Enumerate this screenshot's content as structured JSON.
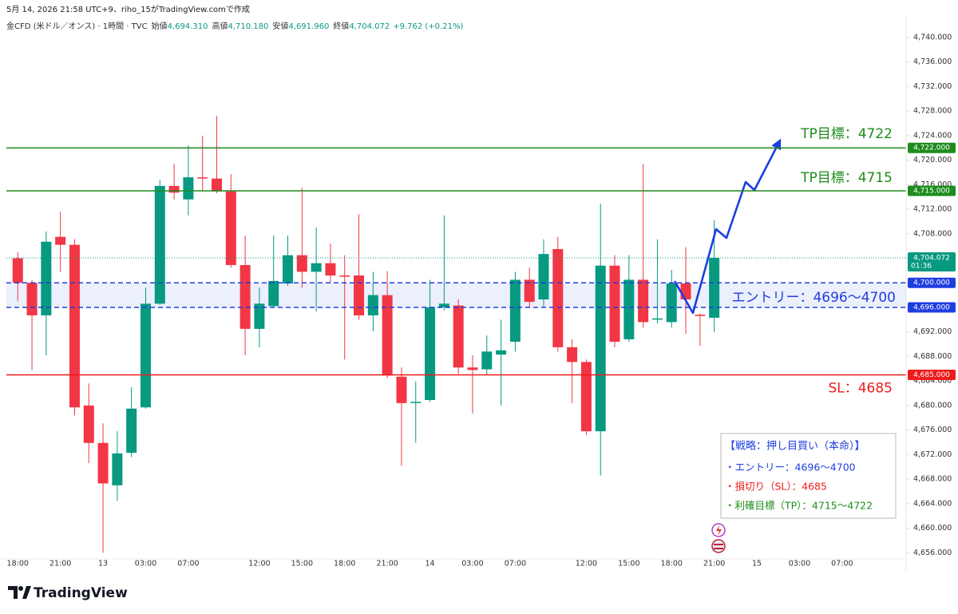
{
  "chart_data": {
    "type": "candlestick",
    "header": {
      "created": "5月 14, 2026 21:58 UTC+9、riho_15がTradingView.comで作成",
      "symbol": "金CFD (米ドル／オンス) · 1時間 · TVC",
      "ohlc": [
        {
          "label": "始値",
          "value": "4,694.310"
        },
        {
          "label": "高値",
          "value": "4,710.180"
        },
        {
          "label": "安値",
          "value": "4,691.960"
        },
        {
          "label": "終値",
          "value": "4,704.072"
        }
      ],
      "change": "+9.762 (+0.21%)"
    },
    "up_color": "#089981",
    "down_color": "#f23645",
    "open": [
      4704,
      4700,
      4694.7,
      4707.5,
      4706.2,
      4680,
      4673.9,
      4667,
      4672.3,
      4679.7,
      4696.6,
      4715.8,
      4713.6,
      4717.2,
      4717,
      4714.9,
      4702.9,
      4692.5,
      4696.2,
      4699.9,
      4704.5,
      4701.8,
      4703.2,
      4701.2,
      4701.2,
      4694.7,
      4698,
      4684.7,
      4680.4,
      4680.9,
      4696,
      4696.3,
      4686.2,
      4685.9,
      4688.3,
      4690.4,
      4700.5,
      4697.3,
      4705.5,
      4689.5,
      4687.1,
      4675.8,
      4702.8,
      4690.8,
      4700.5,
      4694,
      4693.6,
      4699.9,
      4694.8,
      4694.31
    ],
    "high": [
      4705,
      4700.5,
      4708.4,
      4711.6,
      4707.1,
      4683.6,
      4677.1,
      4675.8,
      4683,
      4699.2,
      4716.8,
      4719.4,
      4722.4,
      4724,
      4727.2,
      4717.7,
      4707.7,
      4699.2,
      4707.7,
      4707.7,
      4715.5,
      4709,
      4706.4,
      4704.5,
      4711.2,
      4701.8,
      4701.9,
      4686.2,
      4683.9,
      4700.5,
      4711,
      4697.3,
      4688.2,
      4691.4,
      4694,
      4701.8,
      4702.5,
      4707.1,
      4707.5,
      4690.8,
      4687.5,
      4712.9,
      4704.5,
      4704.5,
      4719.4,
      4707.1,
      4702.1,
      4705.8,
      4695,
      4710.18
    ],
    "low": [
      4697,
      4685.8,
      4688.2,
      4701.8,
      4678.4,
      4670.6,
      4656,
      4664.5,
      4671.6,
      4679.5,
      4696.4,
      4713.6,
      4711,
      4714.9,
      4714.6,
      4702.5,
      4688.2,
      4689.5,
      4696,
      4699.5,
      4699.2,
      4695.3,
      4700,
      4687.5,
      4694,
      4692.1,
      4684.5,
      4670.2,
      4673.9,
      4680.6,
      4695.5,
      4685.2,
      4678.7,
      4684.9,
      4680,
      4688.8,
      4696,
      4696,
      4688.8,
      4680.4,
      4675.2,
      4668.6,
      4689.5,
      4690.4,
      4692.7,
      4693.4,
      4692.7,
      4691.7,
      4689.7,
      4691.96
    ],
    "close": [
      4700,
      4694.7,
      4706.7,
      4706.2,
      4679.7,
      4673.9,
      4667.3,
      4672.2,
      4679.5,
      4696.6,
      4715.8,
      4714.7,
      4717.2,
      4717,
      4714.9,
      4702.9,
      4692.5,
      4696.6,
      4700.3,
      4704.5,
      4701.8,
      4703.2,
      4701.2,
      4701,
      4694.7,
      4698,
      4684.9,
      4680.4,
      4680.6,
      4696,
      4696.6,
      4686.2,
      4685.8,
      4688.8,
      4689,
      4700.5,
      4696.9,
      4704.7,
      4689.5,
      4687.1,
      4675.8,
      4702.8,
      4690.4,
      4700.5,
      4693.6,
      4694.2,
      4699.9,
      4697.3,
      4694.6,
      4704.072
    ],
    "xlim": [
      -0.8,
      62.5
    ],
    "xticks": [
      {
        "value": 0,
        "label": "18:00"
      },
      {
        "value": 3,
        "label": "21:00"
      },
      {
        "value": 6,
        "label": "13"
      },
      {
        "value": 9,
        "label": "03:00"
      },
      {
        "value": 12,
        "label": "07:00"
      },
      {
        "value": 17,
        "label": "12:00"
      },
      {
        "value": 20,
        "label": "15:00"
      },
      {
        "value": 23,
        "label": "18:00"
      },
      {
        "value": 26,
        "label": "21:00"
      },
      {
        "value": 29,
        "label": "14"
      },
      {
        "value": 32,
        "label": "03:00"
      },
      {
        "value": 35,
        "label": "07:00"
      },
      {
        "value": 40,
        "label": "12:00"
      },
      {
        "value": 43,
        "label": "15:00"
      },
      {
        "value": 46,
        "label": "18:00"
      },
      {
        "value": 49,
        "label": "21:00"
      },
      {
        "value": 52,
        "label": "15"
      },
      {
        "value": 55,
        "label": "03:00"
      },
      {
        "value": 58,
        "label": "07:00"
      }
    ],
    "ylim": [
      4655,
      4743.5
    ],
    "yticks": [
      {
        "value": 4656,
        "label": "4,656.000"
      },
      {
        "value": 4660,
        "label": "4,660.000"
      },
      {
        "value": 4664,
        "label": "4,664.000"
      },
      {
        "value": 4668,
        "label": "4,668.000"
      },
      {
        "value": 4672,
        "label": "4,672.000"
      },
      {
        "value": 4676,
        "label": "4,676.000"
      },
      {
        "value": 4680,
        "label": "4,680.000"
      },
      {
        "value": 4684,
        "label": "4,684.000"
      },
      {
        "value": 4688,
        "label": "4,688.000"
      },
      {
        "value": 4692,
        "label": "4,692.000"
      },
      {
        "value": 4696,
        "label": "4,696.000"
      },
      {
        "value": 4700,
        "label": "4,700.000"
      },
      {
        "value": 4704,
        "label": "4,704.000"
      },
      {
        "value": 4708,
        "label": "4,708.000"
      },
      {
        "value": 4712,
        "label": "4,712.000"
      },
      {
        "value": 4716,
        "label": "4,716.000"
      },
      {
        "value": 4720,
        "label": "4,720.000"
      },
      {
        "value": 4724,
        "label": "4,724.000"
      },
      {
        "value": 4728,
        "label": "4,728.000"
      },
      {
        "value": 4732,
        "label": "4,732.000"
      },
      {
        "value": 4736,
        "label": "4,736.000"
      },
      {
        "value": 4740,
        "label": "4,740.000"
      }
    ],
    "grid": false,
    "levels": [
      {
        "value": 4722,
        "label": "4,722.000",
        "color": "#1e8c1e",
        "dashed": false,
        "note": "TP目標：4722"
      },
      {
        "value": 4715,
        "label": "4,715.000",
        "color": "#1e8c1e",
        "dashed": false,
        "note": "TP目標：4715"
      },
      {
        "value": 4700,
        "label": "4,700.000",
        "color": "#1f3ee0",
        "dashed": true
      },
      {
        "value": 4696,
        "label": "4,696.000",
        "color": "#1f3ee0",
        "dashed": true,
        "note": "エントリー：4696〜4700"
      },
      {
        "value": 4685,
        "label": "4,685.000",
        "color": "#ef1c1c",
        "dashed": false,
        "note": "SL：4685"
      }
    ],
    "zone_color": "rgba(70,95,230,0.10)",
    "last": {
      "value": 4704.072,
      "label": "4,704.072",
      "countdown": "01:36"
    },
    "strategy": {
      "title": "【戦略：押し目買い（本命）】",
      "title_color": "#1f3ee0",
      "lines": [
        {
          "text": "・エントリー：4696〜4700",
          "color": "#1f3ee0"
        },
        {
          "text": "・損切り（SL）：4685",
          "color": "#ef1c1c"
        },
        {
          "text": "・利確目標（TP）：4715〜4722",
          "color": "#1e8c1e"
        }
      ]
    },
    "logo": "TradingView"
  }
}
